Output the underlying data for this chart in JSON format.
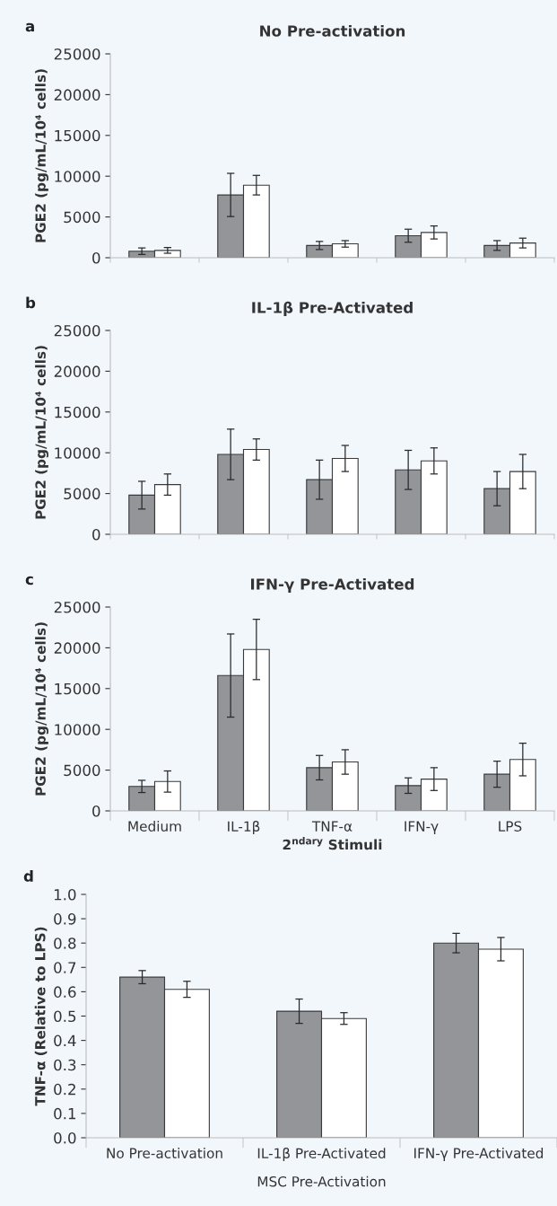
{
  "chart_data": [
    {
      "type": "bar",
      "title": "No Pre-activation",
      "ylabel": "PGE2 (pg/mL/10⁴ cells)",
      "annotations": [
        "a"
      ],
      "categories": [
        null,
        null,
        null,
        null,
        null
      ],
      "tick_labels": "y",
      "ylim": [
        0,
        25000
      ],
      "yticks": [
        0,
        5000,
        10000,
        15000,
        20000,
        25000
      ],
      "grid": false,
      "legend": false,
      "series": [
        {
          "color": "#939598",
          "values": [
            800,
            7700,
            1500,
            2700,
            1500
          ],
          "errors": [
            400,
            2650,
            500,
            800,
            600
          ]
        },
        {
          "color": "#ffffff",
          "values": [
            900,
            8900,
            1700,
            3100,
            1800
          ],
          "errors": [
            350,
            1200,
            400,
            800,
            600
          ]
        }
      ]
    },
    {
      "type": "bar",
      "title": "IL-1β Pre-Activated",
      "ylabel": "PGE2 (pg/mL/10⁴ cells)",
      "annotations": [
        "b"
      ],
      "categories": [
        null,
        null,
        null,
        null,
        null
      ],
      "tick_labels": "y",
      "ylim": [
        0,
        25000
      ],
      "yticks": [
        0,
        5000,
        10000,
        15000,
        20000,
        25000
      ],
      "grid": false,
      "legend": false,
      "series": [
        {
          "color": "#939598",
          "values": [
            4800,
            9800,
            6700,
            7900,
            5600
          ],
          "errors": [
            1700,
            3100,
            2400,
            2400,
            2100
          ]
        },
        {
          "color": "#ffffff",
          "values": [
            6100,
            10400,
            9300,
            9000,
            7700
          ],
          "errors": [
            1300,
            1300,
            1600,
            1600,
            2100
          ]
        }
      ]
    },
    {
      "type": "bar",
      "title": "IFN-γ Pre-Activated",
      "ylabel": "PGE2 (pg/mL/10⁴ cells)",
      "xlabel": "2$^{ndary}$ Stimuli",
      "annotations": [
        "c"
      ],
      "categories": [
        "Medium",
        "IL-1β",
        "TNF-α",
        "IFN-γ",
        "LPS"
      ],
      "ylim": [
        0,
        25000
      ],
      "yticks": [
        0,
        5000,
        10000,
        15000,
        20000,
        25000
      ],
      "grid": false,
      "legend": false,
      "series": [
        {
          "color": "#939598",
          "values": [
            3000,
            16600,
            5300,
            3100,
            4500
          ],
          "errors": [
            750,
            5100,
            1500,
            950,
            1600
          ]
        },
        {
          "color": "#ffffff",
          "values": [
            3600,
            19800,
            6000,
            3900,
            6300
          ],
          "errors": [
            1300,
            3700,
            1500,
            1400,
            2000
          ]
        }
      ]
    },
    {
      "type": "bar",
      "ylabel": "TNF-α (Relative to LPS)",
      "xlabel": "MSC Pre-Activation",
      "annotations": [
        "d"
      ],
      "categories": [
        "No Pre-activation",
        "IL-1β Pre-Activated",
        "IFN-γ Pre-Activated"
      ],
      "ylim": [
        0,
        1.0
      ],
      "yticks": [
        {
          "value": 0,
          "label": "0.0"
        },
        0.1,
        0.2,
        0.3,
        0.4,
        0.5,
        0.6,
        0.7,
        0.8,
        0.9,
        {
          "value": 1.0,
          "label": "1.0"
        }
      ],
      "grid": false,
      "legend": false,
      "series": [
        {
          "color": "#939598",
          "values": [
            0.66,
            0.52,
            0.8
          ],
          "errors": [
            0.027,
            0.05,
            0.04
          ]
        },
        {
          "color": "#ffffff",
          "values": [
            0.61,
            0.49,
            0.775
          ],
          "errors": [
            0.033,
            0.024,
            0.048
          ]
        }
      ]
    }
  ]
}
